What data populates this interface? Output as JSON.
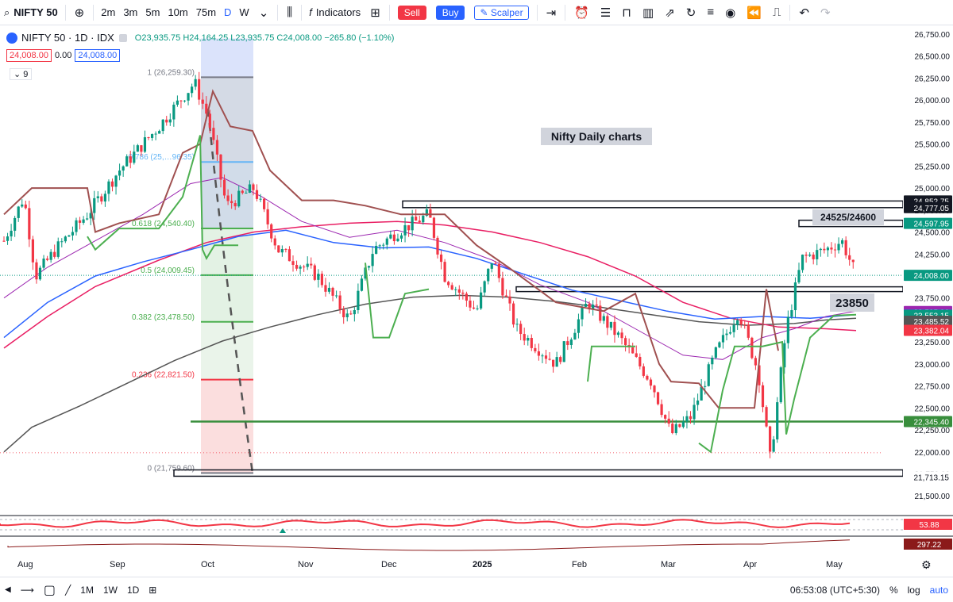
{
  "toolbar": {
    "symbol": "NIFTY 50",
    "timeframes": [
      "2m",
      "3m",
      "5m",
      "10m",
      "75m",
      "D",
      "W"
    ],
    "active_timeframe": "D",
    "indicators_label": "Indicators",
    "sell_label": "Sell",
    "buy_label": "Buy",
    "scalper_label": "Scalper"
  },
  "legend": {
    "symbol_line": "NIFTY 50 · 1D · IDX",
    "ohlc": "O23,935.75 H24,164.25 L23,935.75 C24,008.00 −265.80 (−1.10%)",
    "bid": "24,008.00",
    "spread": "0.00",
    "ask": "24,008.00",
    "indicator_count": "9"
  },
  "annotations": {
    "title": "Nifty Daily charts",
    "zone_label": "24525/24600",
    "level_label": "23850"
  },
  "fib_levels": [
    {
      "label": "1 (26,259.30)",
      "value": 26259.3,
      "color": "#787b86"
    },
    {
      "label": "0.786 (25,…96.35)",
      "value": 25296.35,
      "color": "#64b5f6"
    },
    {
      "label": "0.618 (24,540.40)",
      "value": 24540.4,
      "color": "#4caf50"
    },
    {
      "label": "0.5 (24,009.45)",
      "value": 24009.45,
      "color": "#4caf50"
    },
    {
      "label": "0.382 (23,478.50)",
      "value": 23478.5,
      "color": "#4caf50"
    },
    {
      "label": "0.236 (22,821.50)",
      "value": 22821.5,
      "color": "#f23645"
    },
    {
      "label": "0 (21,759.60)",
      "value": 21759.6,
      "color": "#787b86"
    }
  ],
  "price_axis": {
    "ticks": [
      "26,750.00",
      "26,500.00",
      "26,250.00",
      "26,000.00",
      "25,750.00",
      "25,500.00",
      "25,250.00",
      "25,000.00",
      "24,750.00",
      "24,500.00",
      "24,250.00",
      "24,000.00",
      "23,750.00",
      "23,500.00",
      "23,250.00",
      "23,000.00",
      "22,750.00",
      "22,500.00",
      "22,250.00",
      "22,000.00",
      "21,750.00",
      "21,500.00"
    ],
    "tick_values": [
      26750,
      26500,
      26250,
      26000,
      25750,
      25500,
      25250,
      25000,
      24750,
      24500,
      24250,
      24000,
      23750,
      23500,
      23250,
      23000,
      22750,
      22500,
      22250,
      22000,
      21750,
      21500
    ],
    "badges": [
      {
        "text": "24,852.75",
        "value": 24852.75,
        "bg": "#131722",
        "fg": "#ffffff"
      },
      {
        "text": "24,777.05",
        "value": 24777.05,
        "bg": "#131722",
        "fg": "#ffffff"
      },
      {
        "text": "24,597.95",
        "value": 24597.95,
        "bg": "#089981",
        "fg": "#ffffff"
      },
      {
        "text": "24,008.00",
        "value": 24008.0,
        "bg": "#089981",
        "fg": "#ffffff"
      },
      {
        "text": "23,595.96",
        "value": 23595.96,
        "bg": "#9c27b0",
        "fg": "#ffffff"
      },
      {
        "text": "23,555.58",
        "value": 23555.58,
        "bg": "#2962ff",
        "fg": "#ffffff"
      },
      {
        "text": "23,553.15",
        "value": 23553.15,
        "bg": "#089981",
        "fg": "#ffffff"
      },
      {
        "text": "23,485.52",
        "value": 23485.52,
        "bg": "#555555",
        "fg": "#ffffff"
      },
      {
        "text": "23,382.04",
        "value": 23382.04,
        "bg": "#f23645",
        "fg": "#ffffff"
      },
      {
        "text": "22,345.40",
        "value": 22345.4,
        "bg": "#388e3c",
        "fg": "#ffffff"
      },
      {
        "text": "21,713.15",
        "value": 21713.15,
        "bg": "#ffffff",
        "fg": "#131722"
      }
    ]
  },
  "horizontal_lines": [
    {
      "value": 24852.75,
      "color": "#131722"
    },
    {
      "value": 24777.05,
      "color": "#131722"
    },
    {
      "value": 23850,
      "color": "#131722"
    },
    {
      "value": 22345.4,
      "color": "#388e3c"
    }
  ],
  "time_axis": [
    "Aug",
    "Sep",
    "Oct",
    "Nov",
    "Dec",
    "2025",
    "Feb",
    "Mar",
    "Apr",
    "May"
  ],
  "oscillators": [
    {
      "value_text": "53.88",
      "color": "#f23645"
    },
    {
      "value_text": "297.22",
      "color": "#8b1a1a"
    }
  ],
  "bottom": {
    "ranges": [
      "1M",
      "1W",
      "1D"
    ],
    "clock": "06:53:08 (UTC+5:30)",
    "percent_label": "%",
    "log_label": "log",
    "auto_label": "auto"
  },
  "colors": {
    "up": "#089981",
    "down": "#f23645",
    "supertrend_up": "#4caf50",
    "supertrend_down": "#a05050",
    "ema_red": "#e91e63",
    "ema_blue": "#2962ff",
    "ema_purple": "#9c27b0",
    "ema_black": "#555555"
  }
}
